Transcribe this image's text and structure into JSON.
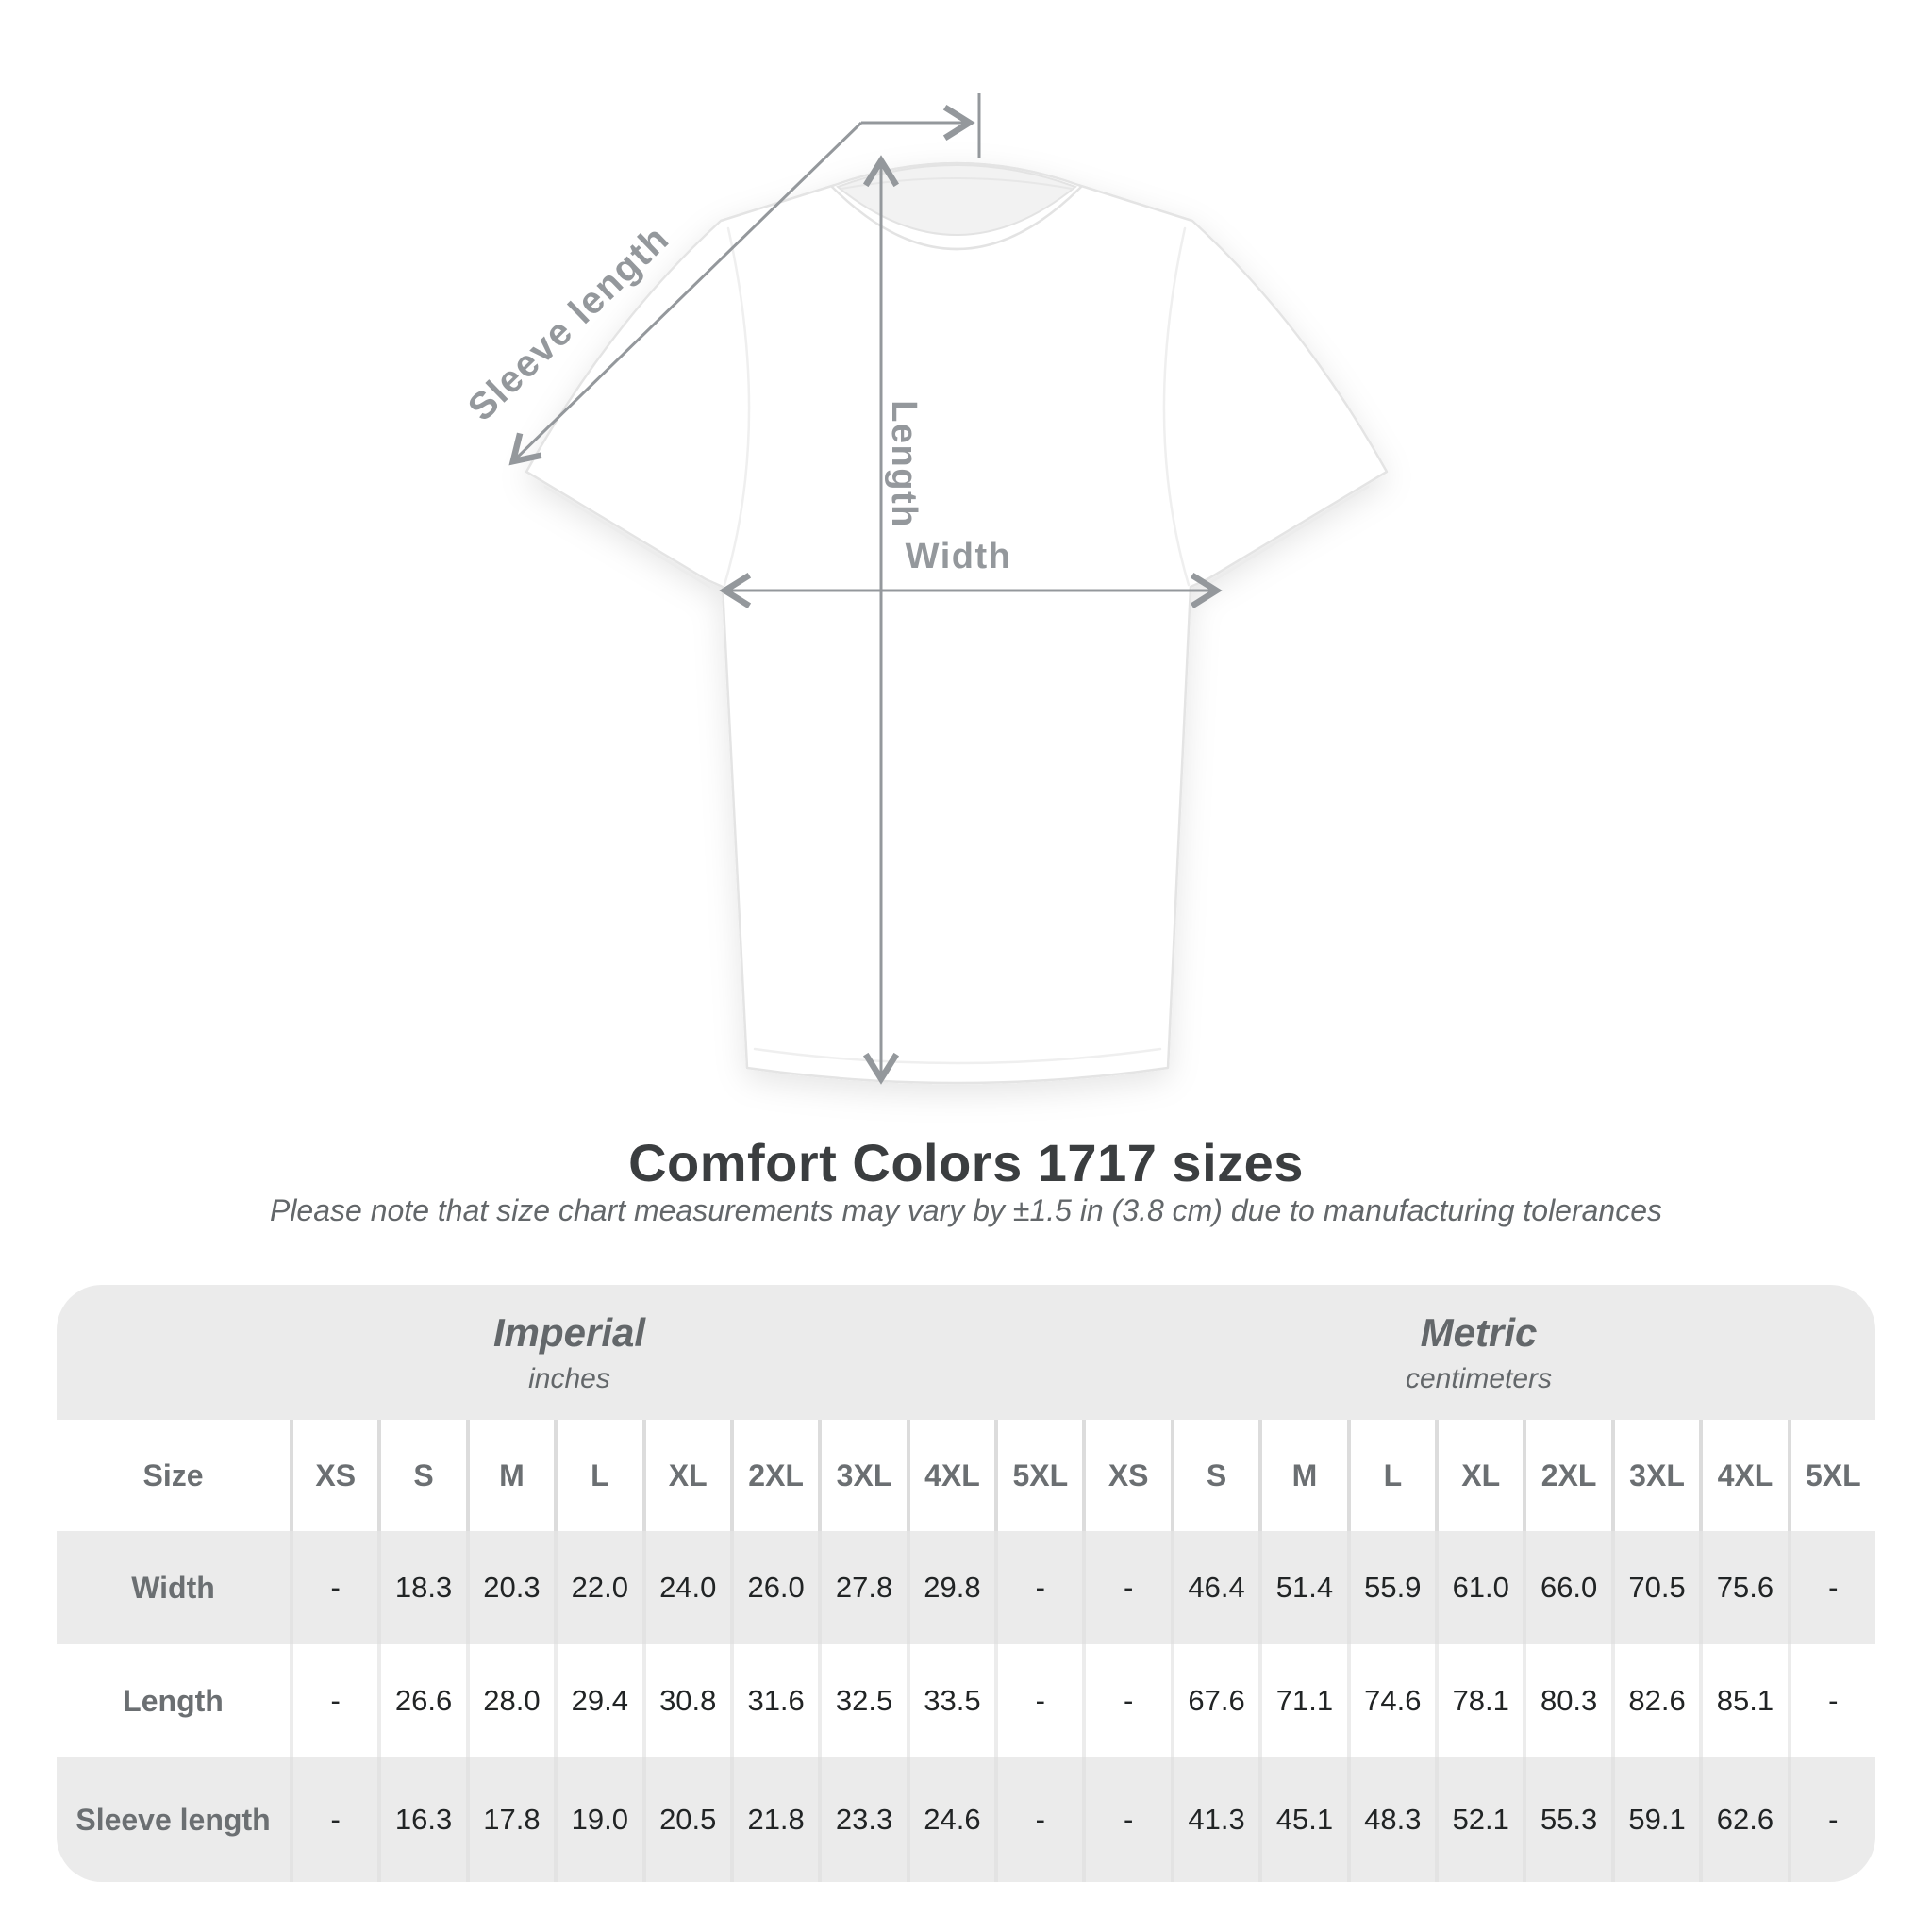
{
  "diagram": {
    "labels": {
      "sleeve": "Sleeve length",
      "length": "Length",
      "width": "Width"
    },
    "annotation_color": "#94989c"
  },
  "title": "Comfort Colors 1717 sizes",
  "subtitle": "Please note that size chart measurements may vary by ±1.5 in (3.8 cm) due to manufacturing tolerances",
  "table": {
    "groups": [
      {
        "label": "Imperial",
        "sublabel": "inches"
      },
      {
        "label": "Metric",
        "sublabel": "centimeters"
      }
    ],
    "size_header": "Size",
    "sizes_imperial": [
      "XS",
      "S",
      "M",
      "L",
      "XL",
      "2XL",
      "3XL",
      "4XL",
      "5XL"
    ],
    "sizes_metric": [
      "XS",
      "S",
      "M",
      "L",
      "XL",
      "2XL",
      "3XL",
      "4XL",
      "5XL"
    ],
    "rows": [
      {
        "label": "Width",
        "imperial": [
          "-",
          "18.3",
          "20.3",
          "22.0",
          "24.0",
          "26.0",
          "27.8",
          "29.8",
          "-"
        ],
        "metric": [
          "-",
          "46.4",
          "51.4",
          "55.9",
          "61.0",
          "66.0",
          "70.5",
          "75.6",
          "-"
        ]
      },
      {
        "label": "Length",
        "imperial": [
          "-",
          "26.6",
          "28.0",
          "29.4",
          "30.8",
          "31.6",
          "32.5",
          "33.5",
          "-"
        ],
        "metric": [
          "-",
          "67.6",
          "71.1",
          "74.6",
          "78.1",
          "80.3",
          "82.6",
          "85.1",
          "-"
        ]
      },
      {
        "label": "Sleeve length",
        "imperial": [
          "-",
          "16.3",
          "17.8",
          "19.0",
          "20.5",
          "21.8",
          "23.3",
          "24.6",
          "-"
        ],
        "metric": [
          "-",
          "41.3",
          "45.1",
          "48.3",
          "52.1",
          "55.3",
          "59.1",
          "62.6",
          "-"
        ]
      }
    ]
  }
}
